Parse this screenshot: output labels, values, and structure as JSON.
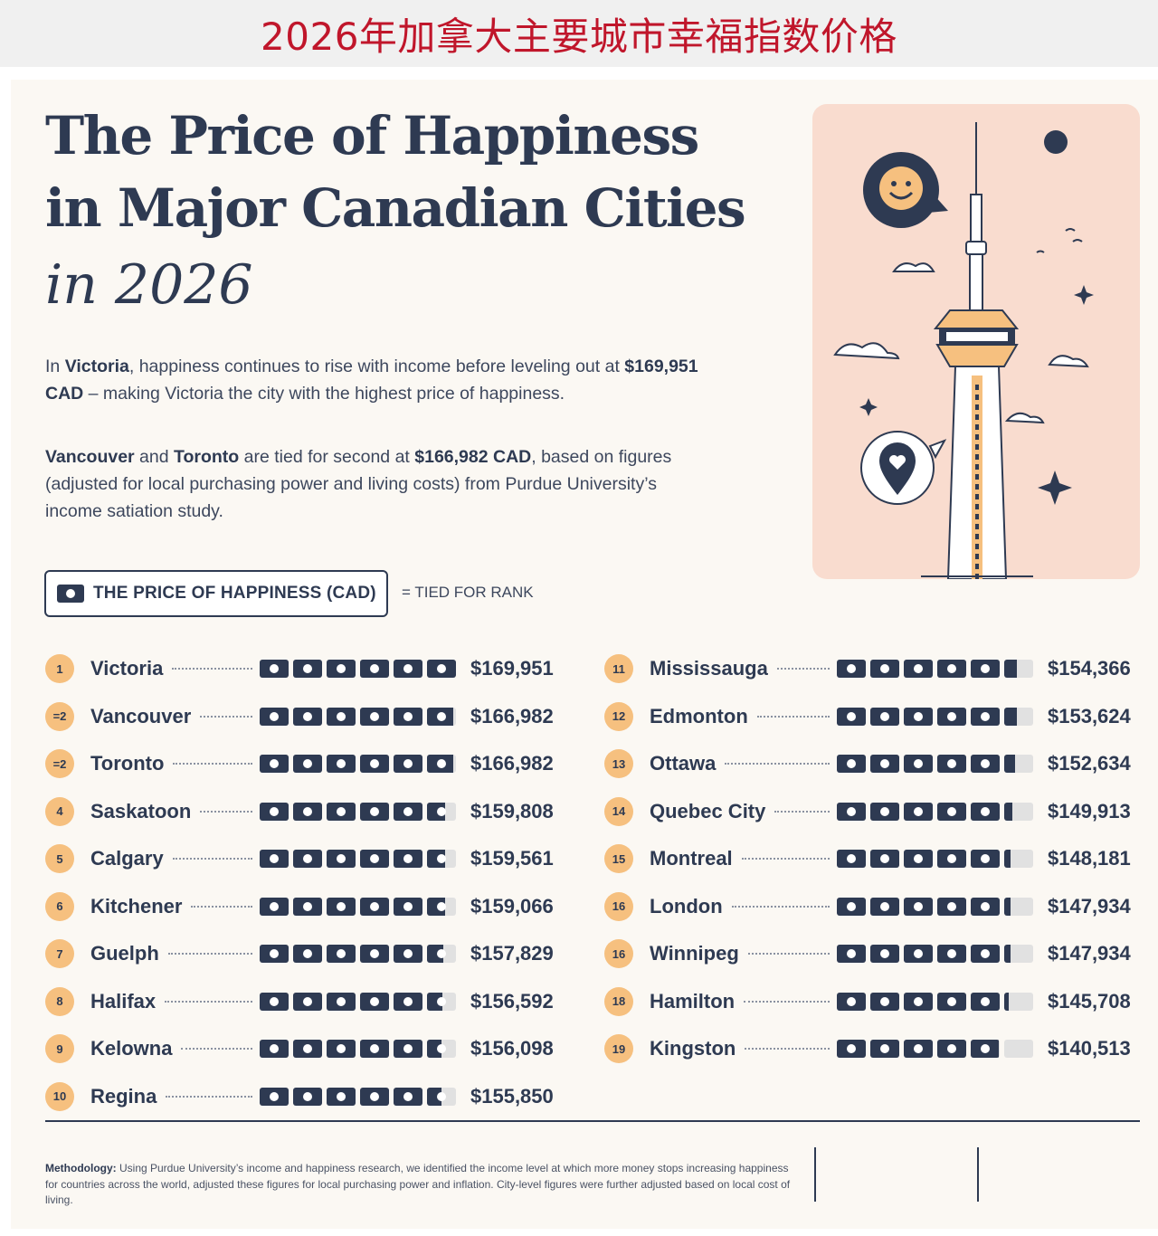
{
  "banner": "2026年加拿大主要城市幸福指数价格",
  "title_line1": "The Price of Happiness",
  "title_line2": "in Major Canadian Cities",
  "title_line3": "in 2026",
  "intro1": {
    "t1": "In ",
    "b1": "Victoria",
    "t2": ", happiness continues to rise with income before leveling out at ",
    "b2": "$169,951 CAD",
    "t3": " – making Victoria the city with the highest price of happiness."
  },
  "intro2": {
    "b1": "Vancouver",
    "t1": " and ",
    "b2": "Toronto",
    "t2": " are tied for second at ",
    "b3": "$166,982 CAD",
    "t3": ", based on figures (adjusted for local purchasing power and living costs) from Purdue University’s income satiation study."
  },
  "legend": {
    "label": "THE PRICE OF HAPPINESS (CAD)",
    "note": "= TIED FOR RANK"
  },
  "methodology": {
    "label": "Methodology:",
    "text": " Using Purdue University’s income and happiness research, we identified the income level at which more money stops increasing happiness for countries across the world, adjusted these figures for local purchasing power and inflation. City-level figures were further adjusted based on local cost of living."
  },
  "colors": {
    "navy": "#2e3a52",
    "badge": "#f6c07f",
    "illustration_bg": "#f9dccf",
    "banner_text": "#c0162b"
  },
  "chart_data": {
    "type": "table",
    "title": "The Price of Happiness in Major Canadian Cities in 2026",
    "unit": "CAD",
    "bills_scale_max": 170000,
    "rows": [
      {
        "rank": "1",
        "city": "Victoria",
        "value": 169951,
        "price": "$169,951"
      },
      {
        "rank": "=2",
        "city": "Vancouver",
        "value": 166982,
        "price": "$166,982"
      },
      {
        "rank": "=2",
        "city": "Toronto",
        "value": 166982,
        "price": "$166,982"
      },
      {
        "rank": "4",
        "city": "Saskatoon",
        "value": 159808,
        "price": "$159,808"
      },
      {
        "rank": "5",
        "city": "Calgary",
        "value": 159561,
        "price": "$159,561"
      },
      {
        "rank": "6",
        "city": "Kitchener",
        "value": 159066,
        "price": "$159,066"
      },
      {
        "rank": "7",
        "city": "Guelph",
        "value": 157829,
        "price": "$157,829"
      },
      {
        "rank": "8",
        "city": "Halifax",
        "value": 156592,
        "price": "$156,592"
      },
      {
        "rank": "9",
        "city": "Kelowna",
        "value": 156098,
        "price": "$156,098"
      },
      {
        "rank": "10",
        "city": "Regina",
        "value": 155850,
        "price": "$155,850"
      },
      {
        "rank": "11",
        "city": "Mississauga",
        "value": 154366,
        "price": "$154,366"
      },
      {
        "rank": "12",
        "city": "Edmonton",
        "value": 153624,
        "price": "$153,624"
      },
      {
        "rank": "13",
        "city": "Ottawa",
        "value": 152634,
        "price": "$152,634"
      },
      {
        "rank": "14",
        "city": "Quebec City",
        "value": 149913,
        "price": "$149,913"
      },
      {
        "rank": "15",
        "city": "Montreal",
        "value": 148181,
        "price": "$148,181"
      },
      {
        "rank": "16",
        "city": "London",
        "value": 147934,
        "price": "$147,934"
      },
      {
        "rank": "16",
        "city": "Winnipeg",
        "value": 147934,
        "price": "$147,934"
      },
      {
        "rank": "18",
        "city": "Hamilton",
        "value": 145708,
        "price": "$145,708"
      },
      {
        "rank": "19",
        "city": "Kingston",
        "value": 140513,
        "price": "$140,513"
      }
    ]
  }
}
